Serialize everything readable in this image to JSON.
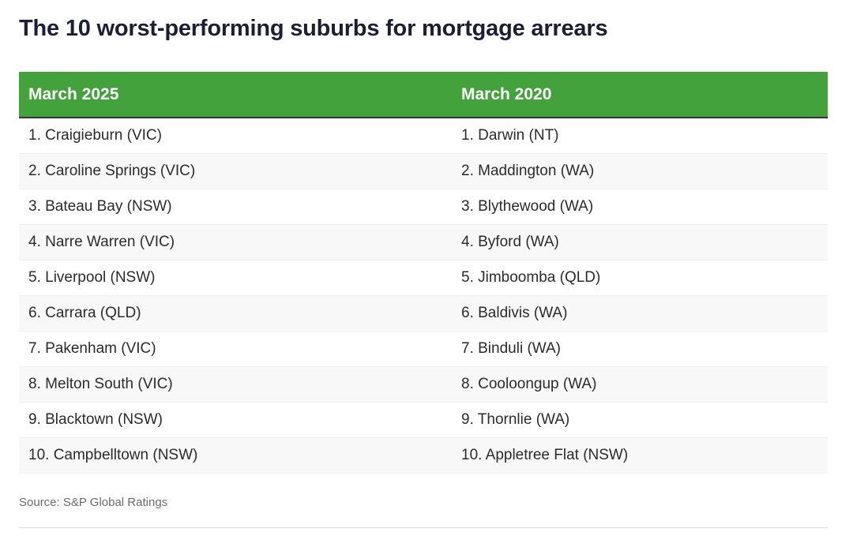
{
  "title": "The 10 worst-performing suburbs for mortgage arrears",
  "table": {
    "headers": [
      "March 2025",
      "March 2020"
    ],
    "rows": [
      [
        "1. Craigieburn (VIC)",
        "1. Darwin (NT)"
      ],
      [
        "2. Caroline Springs (VIC)",
        "2. Maddington (WA)"
      ],
      [
        "3. Bateau Bay (NSW)",
        "3. Blythewood (WA)"
      ],
      [
        "4. Narre Warren (VIC)",
        "4. Byford (WA)"
      ],
      [
        "5. Liverpool (NSW)",
        "5. Jimboomba (QLD)"
      ],
      [
        "6. Carrara (QLD)",
        "6. Baldivis (WA)"
      ],
      [
        "7. Pakenham (VIC)",
        "7. Binduli (WA)"
      ],
      [
        "8. Melton South (VIC)",
        "8. Cooloongup (WA)"
      ],
      [
        "9. Blacktown (NSW)",
        "9. Thornlie (WA)"
      ],
      [
        "10. Campbelltown (NSW)",
        "10. Appletree Flat (NSW)"
      ]
    ]
  },
  "source": "Source: S&P Global Ratings",
  "colors": {
    "header_bg": "#44a23d",
    "header_text": "#ffffff",
    "title_text": "#1a1f36"
  }
}
